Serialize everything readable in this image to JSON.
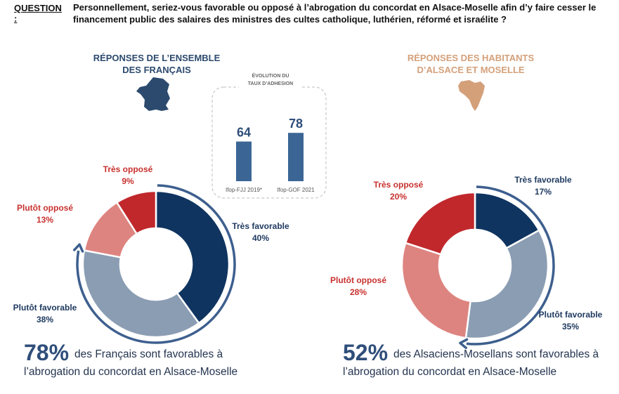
{
  "question": {
    "label": "QUESTION :",
    "text": "Personnellement, seriez-vous favorable ou opposé à l’abrogation du concordat en Alsace-Moselle afin d’y faire cesser le financement public des salaires des ministres des cultes catholique, luthérien, réformé et israélite  ?"
  },
  "colors": {
    "tres_favorable": "#0f3460",
    "plutot_favorable": "#8a9db3",
    "plutot_oppose": "#de8480",
    "tres_oppose": "#c0282c",
    "arrow": "#3d5f8e",
    "bar": "#3b6595",
    "france_map": "#2c4a6e",
    "alsace_map": "#d4a07a"
  },
  "icons": [
    "france-map-icon",
    "alsace-moselle-map-icon"
  ],
  "chart_data": [
    {
      "type": "pie",
      "title": "RÉPONSES DE L’ENSEMBLE DES FRANÇAIS",
      "categories": [
        "Très favorable",
        "Plutôt favorable",
        "Plutôt opposé",
        "Très opposé"
      ],
      "values": [
        40,
        38,
        13,
        9
      ],
      "labels": [
        "40%",
        "38%",
        "13%",
        "9%"
      ]
    },
    {
      "type": "bar",
      "title": "ÉVOLUTION DU TAUX D’ADHESION",
      "categories": [
        "Ifop-FJJ 2019*",
        "Ifop-GOF 2021"
      ],
      "values": [
        64,
        78
      ],
      "labels": [
        "64",
        "78"
      ]
    },
    {
      "type": "pie",
      "title": "RÉPONSES DES HABITANTS D’ALSACE ET MOSELLE",
      "categories": [
        "Très favorable",
        "Plutôt favorable",
        "Plutôt opposé",
        "Très opposé"
      ],
      "values": [
        17,
        35,
        28,
        20
      ],
      "labels": [
        "17%",
        "35%",
        "28%",
        "20%"
      ]
    }
  ],
  "summary_left": {
    "pct": "78%",
    "line1": "des Français sont favorables à",
    "line2": "l’abrogation du concordat en Alsace-Moselle"
  },
  "summary_right": {
    "pct": "52%",
    "line1": "des Alsaciens-Mosellans sont favorables à",
    "line2": "l’abrogation du concordat en Alsace-Moselle"
  }
}
